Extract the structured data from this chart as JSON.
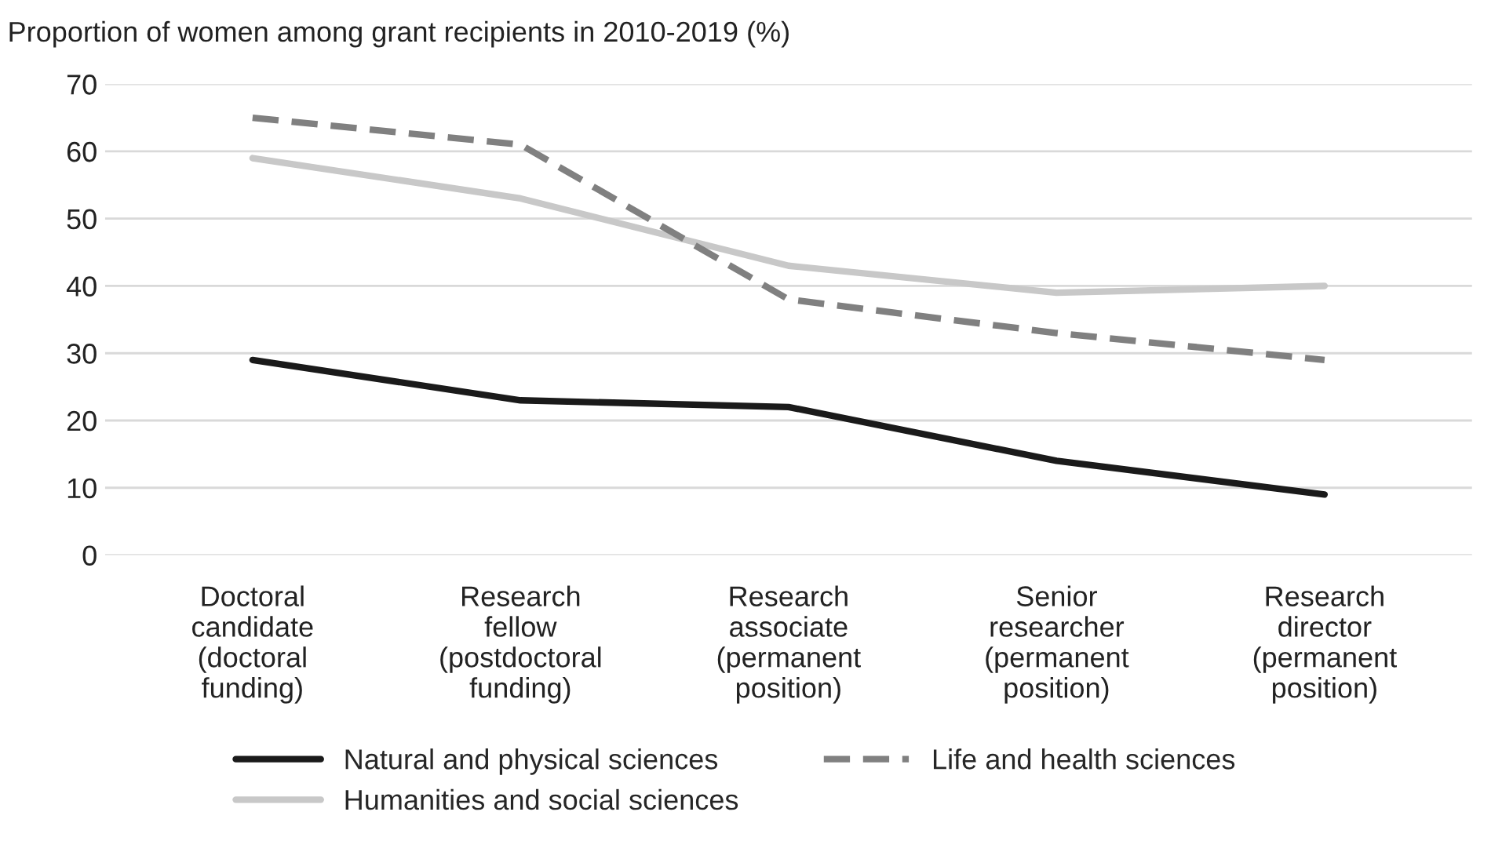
{
  "chart_data": {
    "type": "line",
    "title": "Proportion of women among grant recipients in 2010-2019 (%)",
    "categories": [
      "Doctoral\ncandidate\n(doctoral\nfunding)",
      "Research\nfellow\n(postdoctoral\nfunding)",
      "Research\nassociate\n(permanent\nposition)",
      "Senior\nresearcher\n(permanent\nposition)",
      "Research\ndirector\n(permanent\nposition)"
    ],
    "series": [
      {
        "name": "Natural and physical sciences",
        "color": "#1a1a1a",
        "values": [
          29,
          23,
          22,
          14,
          9
        ],
        "line_style": "solid"
      },
      {
        "name": "Humanities and social sciences",
        "color": "#c8c8c8",
        "values": [
          59,
          53,
          43,
          39,
          40
        ],
        "line_style": "solid"
      },
      {
        "name": "Life and health sciences",
        "color": "#808080",
        "values": [
          65,
          61,
          38,
          33,
          29
        ],
        "line_style": "dashed"
      }
    ],
    "ylim": [
      0,
      70
    ],
    "yticks": [
      0,
      10,
      20,
      30,
      40,
      50,
      60,
      70
    ],
    "grid": "y",
    "legend": "bottom",
    "marker": "none"
  }
}
